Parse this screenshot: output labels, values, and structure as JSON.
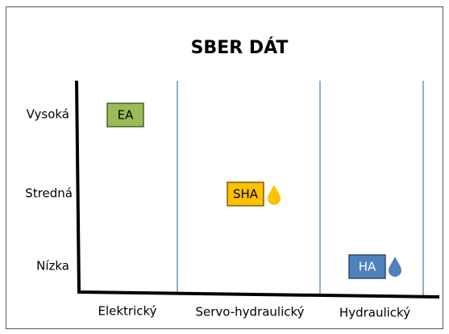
{
  "title": "SBER DÁT",
  "rows": [
    "Vysoká",
    "Stredná",
    "Nízka"
  ],
  "columns": [
    "Elektrický",
    "Servo-hydraulický",
    "Hydraulický"
  ],
  "items": [
    {
      "label": "EA"
    },
    {
      "label": "SHA"
    },
    {
      "label": "HA"
    }
  ]
}
